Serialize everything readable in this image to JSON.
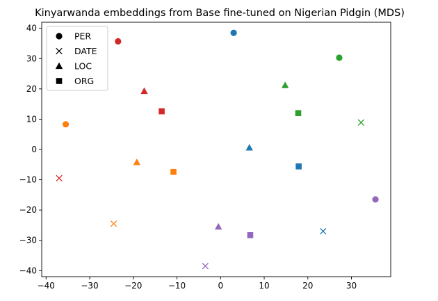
{
  "chart_data": {
    "type": "scatter",
    "title": "Kinyarwanda embeddings from Base fine-tuned on Nigerian Pidgin (MDS)",
    "xlabel": "",
    "ylabel": "",
    "xlim": [
      -41,
      39
    ],
    "ylim": [
      -42,
      42
    ],
    "xticks": [
      -40,
      -30,
      -20,
      -10,
      0,
      10,
      20,
      30
    ],
    "yticks": [
      -40,
      -30,
      -20,
      -10,
      0,
      10,
      20,
      30,
      40
    ],
    "grid": false,
    "legend": {
      "placement": "top-left",
      "entries": [
        {
          "label": "PER",
          "marker": "circle"
        },
        {
          "label": "DATE",
          "marker": "x"
        },
        {
          "label": "LOC",
          "marker": "triangle"
        },
        {
          "label": "ORG",
          "marker": "square"
        }
      ]
    },
    "colors": {
      "blue": "#1f77b4",
      "orange": "#ff7f0e",
      "green": "#2ca02c",
      "red": "#d62728",
      "purple": "#9467bd"
    },
    "points": [
      {
        "label": "PER",
        "marker": "circle",
        "color": "blue",
        "x": 3.0,
        "y": 38.5
      },
      {
        "label": "PER",
        "marker": "circle",
        "color": "red",
        "x": -23.5,
        "y": 35.7
      },
      {
        "label": "PER",
        "marker": "circle",
        "color": "green",
        "x": 27.2,
        "y": 30.3
      },
      {
        "label": "PER",
        "marker": "circle",
        "color": "orange",
        "x": -35.5,
        "y": 8.3
      },
      {
        "label": "PER",
        "marker": "circle",
        "color": "purple",
        "x": 35.5,
        "y": -16.5
      },
      {
        "label": "DATE",
        "marker": "x",
        "color": "green",
        "x": 32.2,
        "y": 8.9
      },
      {
        "label": "DATE",
        "marker": "x",
        "color": "red",
        "x": -37.0,
        "y": -9.5
      },
      {
        "label": "DATE",
        "marker": "x",
        "color": "orange",
        "x": -24.5,
        "y": -24.5
      },
      {
        "label": "DATE",
        "marker": "x",
        "color": "blue",
        "x": 23.5,
        "y": -27.0
      },
      {
        "label": "DATE",
        "marker": "x",
        "color": "purple",
        "x": -3.5,
        "y": -38.5
      },
      {
        "label": "LOC",
        "marker": "triangle",
        "color": "green",
        "x": 14.8,
        "y": 21.2
      },
      {
        "label": "LOC",
        "marker": "triangle",
        "color": "red",
        "x": -17.5,
        "y": 19.3
      },
      {
        "label": "LOC",
        "marker": "triangle",
        "color": "blue",
        "x": 6.6,
        "y": 0.6
      },
      {
        "label": "LOC",
        "marker": "triangle",
        "color": "orange",
        "x": -19.2,
        "y": -4.2
      },
      {
        "label": "LOC",
        "marker": "triangle",
        "color": "purple",
        "x": -0.5,
        "y": -25.5
      },
      {
        "label": "ORG",
        "marker": "square",
        "color": "red",
        "x": -13.5,
        "y": 12.6
      },
      {
        "label": "ORG",
        "marker": "square",
        "color": "green",
        "x": 17.8,
        "y": 12.0
      },
      {
        "label": "ORG",
        "marker": "square",
        "color": "orange",
        "x": -10.8,
        "y": -7.4
      },
      {
        "label": "ORG",
        "marker": "square",
        "color": "blue",
        "x": 17.9,
        "y": -5.6
      },
      {
        "label": "ORG",
        "marker": "square",
        "color": "purple",
        "x": 6.8,
        "y": -28.3
      }
    ]
  }
}
